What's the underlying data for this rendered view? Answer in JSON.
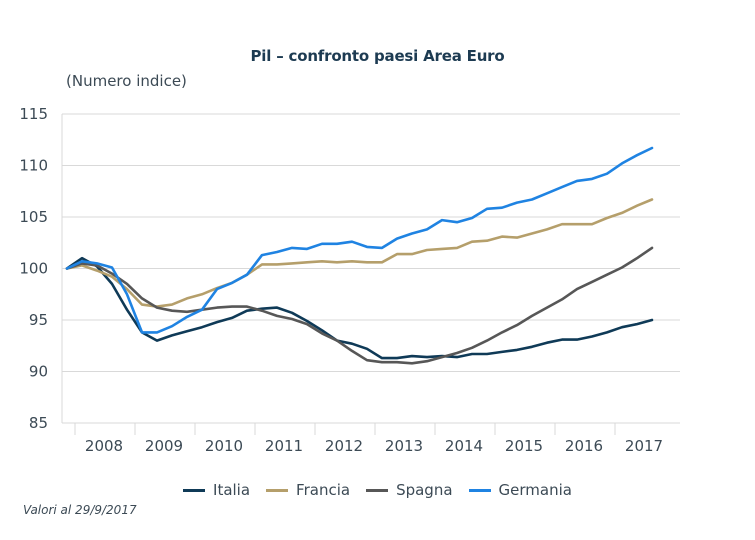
{
  "chart_data": {
    "type": "line",
    "title": "Pil – confronto paesi Area Euro",
    "ylabel": "(Numero indice)",
    "xlabel": "",
    "ylim": [
      85,
      115
    ],
    "yticks": [
      85,
      90,
      95,
      100,
      105,
      110,
      115
    ],
    "year_labels": [
      "2008",
      "2009",
      "2010",
      "2011",
      "2012",
      "2013",
      "2014",
      "2015",
      "2016",
      "2017"
    ],
    "frequency": "quarterly",
    "grid": true,
    "legend_position": "bottom",
    "note": "Valori al 29/9/2017",
    "series": [
      {
        "name": "Italia",
        "color": "#0f3a57",
        "values": [
          100,
          101,
          100.2,
          98.5,
          96,
          93.8,
          93,
          93.5,
          93.9,
          94.3,
          94.8,
          95.2,
          95.9,
          96.1,
          96.2,
          95.7,
          94.9,
          94.0,
          93.0,
          92.7,
          92.2,
          91.3,
          91.3,
          91.5,
          91.4,
          91.5,
          91.4,
          91.7,
          91.7,
          91.9,
          92.1,
          92.4,
          92.8,
          93.1,
          93.1,
          93.4,
          93.8,
          94.3,
          94.6,
          95.0
        ]
      },
      {
        "name": "Francia",
        "color": "#b59f6b",
        "values": [
          100,
          100.3,
          99.8,
          99.2,
          98,
          96.5,
          96.3,
          96.5,
          97.1,
          97.5,
          98.1,
          98.6,
          99.4,
          100.4,
          100.4,
          100.5,
          100.6,
          100.7,
          100.6,
          100.7,
          100.6,
          100.6,
          101.4,
          101.4,
          101.8,
          101.9,
          102.0,
          102.6,
          102.7,
          103.1,
          103.0,
          103.4,
          103.8,
          104.3,
          104.3,
          104.3,
          104.9,
          105.4,
          106.1,
          106.7
        ]
      },
      {
        "name": "Spagna",
        "color": "#575757",
        "values": [
          100,
          100.5,
          100.3,
          99.5,
          98.5,
          97.1,
          96.2,
          95.9,
          95.8,
          96.0,
          96.2,
          96.3,
          96.3,
          95.9,
          95.4,
          95.1,
          94.6,
          93.7,
          93.0,
          92.0,
          91.1,
          90.9,
          90.9,
          90.8,
          91.0,
          91.4,
          91.8,
          92.3,
          93.0,
          93.8,
          94.5,
          95.4,
          96.2,
          97.0,
          98.0,
          98.7,
          99.4,
          100.1,
          101.0,
          102.0
        ]
      },
      {
        "name": "Germania",
        "color": "#1f83e2",
        "values": [
          100,
          100.7,
          100.5,
          100.1,
          97.5,
          93.8,
          93.8,
          94.4,
          95.3,
          96.0,
          98.0,
          98.6,
          99.4,
          101.3,
          101.6,
          102.0,
          101.9,
          102.4,
          102.4,
          102.6,
          102.1,
          102.0,
          102.9,
          103.4,
          103.8,
          104.7,
          104.5,
          104.9,
          105.8,
          105.9,
          106.4,
          106.7,
          107.3,
          107.9,
          108.5,
          108.7,
          109.2,
          110.2,
          111.0,
          111.7
        ]
      }
    ]
  }
}
